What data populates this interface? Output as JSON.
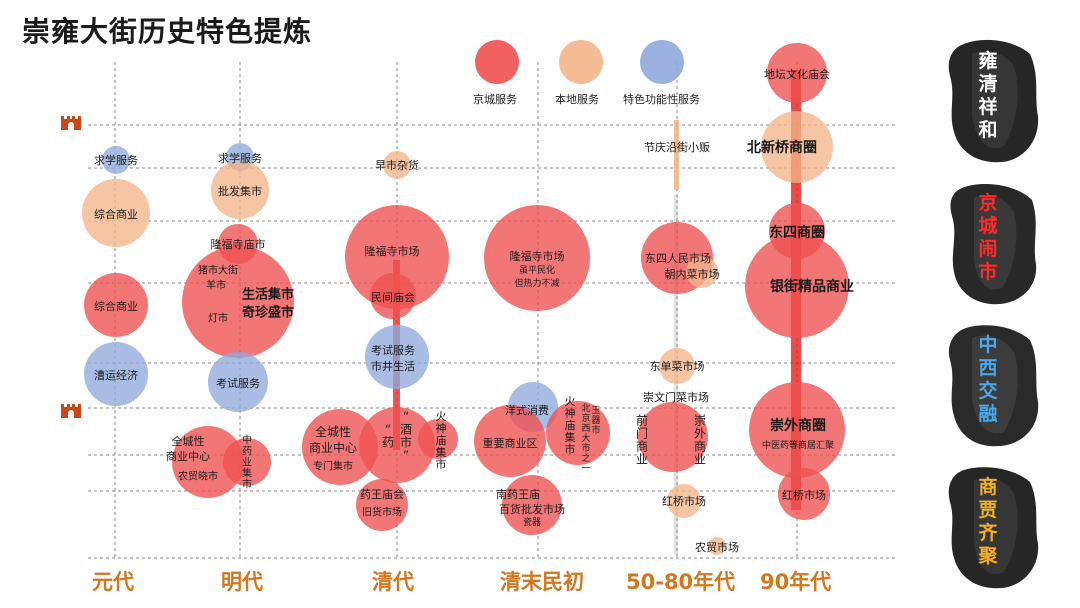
{
  "title": "崇雍大街历史特色提炼",
  "eras": [
    "元代",
    "明代",
    "清代",
    "清末民初",
    "50-80年代",
    "90年代"
  ],
  "legend": [
    {
      "label": "京城服务",
      "color": "#f05050"
    },
    {
      "label": "本地服务",
      "color": "#f2b58a"
    },
    {
      "label": "特色功能性服务",
      "color": "#8fa9dc"
    }
  ],
  "side_labels": [
    {
      "text": "雍清祥和",
      "color": "#ffffff"
    },
    {
      "text": "京城闹市",
      "color": "#ff2a2a"
    },
    {
      "text": "中西交融",
      "color": "#4aa8e8"
    },
    {
      "text": "商贾齐聚",
      "color": "#f0b020"
    }
  ],
  "bubbles": [
    {
      "era": "元代",
      "type": "特色功能性服务",
      "size": "small",
      "labels": [
        "求学服务"
      ]
    },
    {
      "era": "元代",
      "type": "本地服务",
      "size": "medium",
      "labels": [
        "综合商业"
      ]
    },
    {
      "era": "元代",
      "type": "京城服务",
      "size": "medium",
      "labels": [
        "综合商业"
      ]
    },
    {
      "era": "元代",
      "type": "特色功能性服务",
      "size": "medium",
      "labels": [
        "漕运经济"
      ]
    },
    {
      "era": "明代",
      "type": "特色功能性服务",
      "size": "small",
      "labels": [
        "求学服务"
      ]
    },
    {
      "era": "明代",
      "type": "本地服务",
      "size": "medium",
      "labels": [
        "批发集市"
      ]
    },
    {
      "era": "明代",
      "type": "京城服务",
      "size": "small",
      "labels": [
        "隆福寺庙市"
      ]
    },
    {
      "era": "明代",
      "type": "京城服务",
      "size": "large",
      "labels": [
        "猪市大街",
        "羊市",
        "生活集市",
        "奇珍盛市",
        "灯市"
      ]
    },
    {
      "era": "明代",
      "type": "特色功能性服务",
      "size": "medium",
      "labels": [
        "考试服务"
      ]
    },
    {
      "era": "明代",
      "type": "京城服务",
      "size": "medium",
      "labels": [
        "全城性",
        "商业中心",
        "农贸晓市"
      ]
    },
    {
      "era": "明代",
      "type": "京城服务",
      "size": "medium",
      "labels": [
        "中药业集市"
      ]
    },
    {
      "era": "清代",
      "type": "本地服务",
      "size": "small",
      "labels": [
        "早市杂货"
      ]
    },
    {
      "era": "清代",
      "type": "京城服务",
      "size": "large",
      "labels": [
        "隆福寺市场"
      ]
    },
    {
      "era": "清代",
      "type": "京城服务",
      "size": "small",
      "labels": [
        "民间庙会"
      ]
    },
    {
      "era": "清代",
      "type": "特色功能性服务",
      "size": "medium",
      "labels": [
        "考试服务",
        "市井生活"
      ]
    },
    {
      "era": "清代",
      "type": "京城服务",
      "size": "medium",
      "labels": [
        "全城性",
        "商业中心",
        "专门集市"
      ]
    },
    {
      "era": "清代",
      "type": "京城服务",
      "size": "medium",
      "labels": [
        "“药市”",
        "“酒市”"
      ]
    },
    {
      "era": "清代",
      "type": "京城服务",
      "size": "small",
      "labels": [
        "火神庙集市"
      ]
    },
    {
      "era": "清代",
      "type": "京城服务",
      "size": "small",
      "labels": [
        "药王庙会",
        "旧货市场"
      ]
    },
    {
      "era": "清末民初",
      "type": "京城服务",
      "size": "large",
      "labels": [
        "隆福寺市场",
        "虽平民化",
        "但热力不减"
      ]
    },
    {
      "era": "清末民初",
      "type": "特色功能性服务",
      "size": "small",
      "labels": [
        "洋式消费"
      ]
    },
    {
      "era": "清末民初",
      "type": "京城服务",
      "size": "medium",
      "labels": [
        "重要商业区"
      ]
    },
    {
      "era": "清末民初",
      "type": "京城服务",
      "size": "medium",
      "labels": [
        "火神庙集市",
        "北京西大市之一",
        "玉器市"
      ]
    },
    {
      "era": "清末民初",
      "type": "京城服务",
      "size": "small",
      "labels": [
        "南药王庙",
        "百货批发市场",
        "瓷器"
      ]
    },
    {
      "era": "50-80年代",
      "type": "本地服务",
      "size": "tiny",
      "labels": [
        "节庆沿街小贩"
      ]
    },
    {
      "era": "50-80年代",
      "type": "京城服务",
      "size": "medium",
      "labels": [
        "东四人民市场"
      ]
    },
    {
      "era": "50-80年代",
      "type": "本地服务",
      "size": "small",
      "labels": [
        "朝内菜市场"
      ]
    },
    {
      "era": "50-80年代",
      "type": "本地服务",
      "size": "small",
      "labels": [
        "东单菜市场"
      ]
    },
    {
      "era": "50-80年代",
      "type": "京城服务",
      "size": "medium",
      "labels": [
        "崇文门菜市场",
        "前门商业",
        "崇外商业"
      ]
    },
    {
      "era": "50-80年代",
      "type": "本地服务",
      "size": "small",
      "labels": [
        "红桥市场"
      ]
    },
    {
      "era": "50-80年代",
      "type": "本地服务",
      "size": "tiny",
      "labels": [
        "农贸市场"
      ]
    },
    {
      "era": "90年代",
      "type": "京城服务",
      "size": "medium",
      "labels": [
        "地坛文化庙会"
      ]
    },
    {
      "era": "90年代",
      "type": "本地服务",
      "size": "medium",
      "labels": [
        "北新桥商圈"
      ]
    },
    {
      "era": "90年代",
      "type": "京城服务",
      "size": "small",
      "labels": [
        "东四商圈"
      ]
    },
    {
      "era": "90年代",
      "type": "京城服务",
      "size": "large",
      "labels": [
        "银街精品商业"
      ]
    },
    {
      "era": "90年代",
      "type": "京城服务",
      "size": "large",
      "labels": [
        "崇外商圈",
        "中医药等商居汇聚"
      ]
    },
    {
      "era": "90年代",
      "type": "京城服务",
      "size": "small",
      "labels": [
        "红桥市场"
      ]
    }
  ]
}
